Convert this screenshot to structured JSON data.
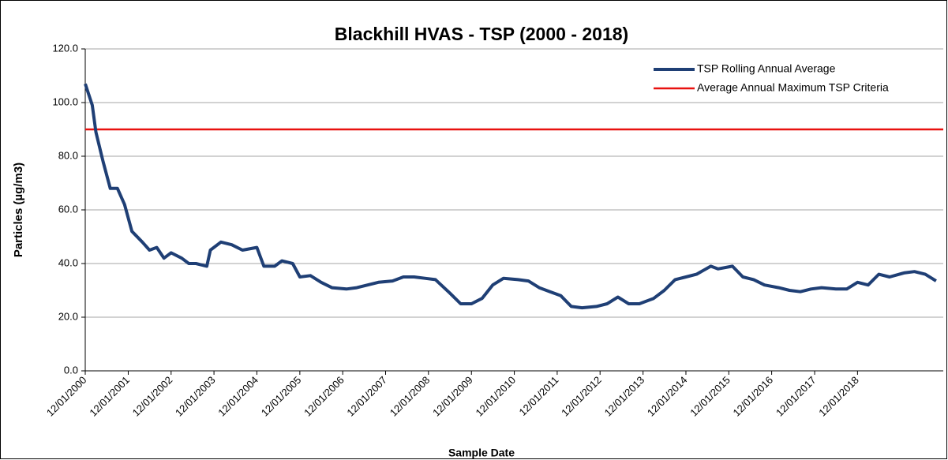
{
  "chart_data": {
    "type": "line",
    "title": "Blackhill HVAS - TSP (2000 -  2018)",
    "x_label": "Sample Date",
    "y_label": "Particles (µg/m3)",
    "xlim": [
      "12/01/2000",
      "12/01/2020"
    ],
    "xticks": [
      "12/01/2000",
      "12/01/2001",
      "12/01/2002",
      "12/01/2003",
      "12/01/2004",
      "12/01/2005",
      "12/01/2006",
      "12/01/2007",
      "12/01/2008",
      "12/01/2009",
      "12/01/2010",
      "12/01/2011",
      "12/01/2012",
      "12/01/2013",
      "12/01/2014",
      "12/01/2015",
      "12/01/2016",
      "12/01/2017",
      "12/01/2018"
    ],
    "ylim": [
      0,
      120
    ],
    "yticks": [
      {
        "value": 0,
        "label": "0.0"
      },
      {
        "value": 20,
        "label": "20.0"
      },
      {
        "value": 40,
        "label": "40.0"
      },
      {
        "value": 60,
        "label": "60.0"
      },
      {
        "value": 80,
        "label": "80.0"
      },
      {
        "value": 100,
        "label": "100.0"
      },
      {
        "value": 120,
        "label": "120.0"
      }
    ],
    "grid": true,
    "legend": "top-right",
    "x": [
      "12/01/2000",
      "12/03/2000",
      "12/04/2000",
      "12/06/2000",
      "12/08/2000",
      "12/10/2000",
      "12/12/2000",
      "12/02/2001",
      "12/05/2001",
      "12/07/2001",
      "12/09/2001",
      "12/11/2001",
      "12/01/2002",
      "12/04/2002",
      "12/06/2002",
      "12/08/2002",
      "12/11/2002",
      "12/12/2002",
      "12/03/2003",
      "12/06/2003",
      "12/09/2003",
      "12/01/2004",
      "12/03/2004",
      "12/06/2004",
      "12/08/2004",
      "12/11/2004",
      "12/01/2005",
      "12/04/2005",
      "12/07/2005",
      "12/10/2005",
      "12/02/2006",
      "12/05/2006",
      "12/08/2006",
      "12/11/2006",
      "12/03/2007",
      "12/06/2007",
      "12/09/2007",
      "12/12/2007",
      "12/03/2008",
      "12/07/2008",
      "12/10/2008",
      "12/01/2009",
      "12/04/2009",
      "12/07/2009",
      "12/10/2009",
      "12/02/2010",
      "12/05/2010",
      "12/08/2010",
      "12/11/2010",
      "12/02/2011",
      "12/05/2011",
      "12/08/2011",
      "12/12/2011",
      "12/03/2012",
      "12/06/2012",
      "12/09/2012",
      "12/12/2012",
      "12/04/2013",
      "12/07/2013",
      "12/10/2013",
      "12/01/2014",
      "12/04/2014",
      "12/08/2014",
      "12/10/2014",
      "12/02/2015",
      "12/05/2015",
      "12/08/2015",
      "12/11/2015",
      "12/03/2016",
      "12/06/2016",
      "12/09/2016",
      "12/12/2016",
      "12/03/2017",
      "12/07/2017",
      "12/10/2017",
      "12/01/2018",
      "12/04/2018",
      "12/07/2018",
      "12/10/2018",
      "12/02/2019",
      "12/05/2019",
      "12/08/2019",
      "12/11/2019"
    ],
    "series": [
      {
        "name": "TSP Rolling Annual Average",
        "color": "#1f3f75",
        "values": [
          107,
          99,
          89,
          78,
          68,
          68,
          62,
          52,
          48,
          45,
          46,
          42,
          44,
          42,
          40,
          40,
          39,
          45,
          48,
          47,
          45,
          46,
          39,
          39,
          41,
          40,
          35,
          35.5,
          33,
          31,
          30.5,
          31,
          32,
          33,
          33.5,
          35,
          35,
          34.5,
          34,
          29,
          25,
          25,
          27,
          32,
          34.5,
          34,
          33.5,
          31,
          29.5,
          28,
          24,
          23.5,
          24,
          25,
          27.5,
          25,
          25,
          27,
          30,
          34,
          35,
          36,
          39,
          38,
          39,
          35,
          34,
          32,
          31,
          30,
          29.5,
          30.5,
          31,
          30.5,
          30.5,
          33,
          32,
          36,
          35,
          36.5,
          37,
          36,
          33.5
        ]
      }
    ],
    "reference_lines": [
      {
        "name": "Average Annual Maximum TSP Criteria",
        "color": "#e8110f",
        "value": 90
      }
    ]
  }
}
